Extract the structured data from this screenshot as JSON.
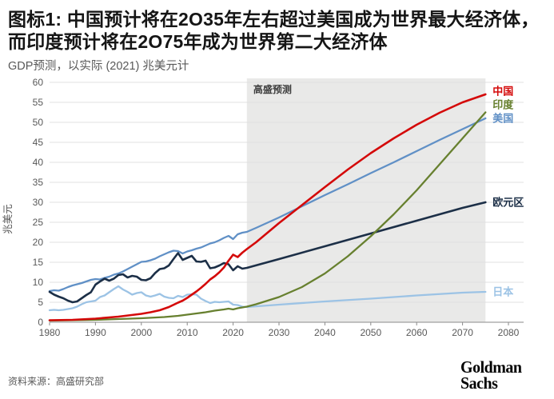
{
  "header": {
    "title": "图标1: 中国预计将在2O35年左右超过美国成为世界最大经济体，而印度预计将在2O75年成为世界第二大经济体",
    "subtitle": "GDP预测，以实际 (2021) 兆美元计"
  },
  "footer": {
    "source": "资料来源：高盛研究部",
    "logo_line1": "Goldman",
    "logo_line2": "Sachs"
  },
  "colors": {
    "grid": "#e0e0e0",
    "axis": "#8a8a8a",
    "tick_text": "#595959",
    "forecast_shade": "#e9e9e8",
    "forecast_text": "#3d3d3d"
  },
  "chart_data": {
    "type": "line",
    "title": "图标1: 中国预计将在2O35年左右超过美国成为世界最大经济体，而印度预计将在2O75年成为世界第二大经济体",
    "subtitle": "GDP预测，以实际 (2021) 兆美元计",
    "xlabel": "",
    "ylabel": "兆美元",
    "xlim": [
      1980,
      2080
    ],
    "ylim": [
      0,
      60
    ],
    "xtick_step": 10,
    "ytick_step": 5,
    "grid": true,
    "legend_position": "right-end-labels",
    "forecast": {
      "label": "高盛预测",
      "start": 2023,
      "end": 2075
    },
    "series": [
      {
        "id": "us",
        "name": "美国",
        "color": "#6090c6",
        "points": [
          [
            1980,
            7.8
          ],
          [
            1981,
            8.0
          ],
          [
            1982,
            7.9
          ],
          [
            1983,
            8.3
          ],
          [
            1984,
            8.8
          ],
          [
            1985,
            9.2
          ],
          [
            1986,
            9.5
          ],
          [
            1987,
            9.8
          ],
          [
            1988,
            10.2
          ],
          [
            1989,
            10.6
          ],
          [
            1990,
            10.8
          ],
          [
            1991,
            10.7
          ],
          [
            1992,
            11.1
          ],
          [
            1993,
            11.4
          ],
          [
            1994,
            11.9
          ],
          [
            1995,
            12.2
          ],
          [
            1996,
            12.7
          ],
          [
            1997,
            13.3
          ],
          [
            1998,
            13.9
          ],
          [
            1999,
            14.5
          ],
          [
            2000,
            15.1
          ],
          [
            2001,
            15.2
          ],
          [
            2002,
            15.5
          ],
          [
            2003,
            15.9
          ],
          [
            2004,
            16.5
          ],
          [
            2005,
            17.0
          ],
          [
            2006,
            17.5
          ],
          [
            2007,
            17.9
          ],
          [
            2008,
            17.8
          ],
          [
            2009,
            17.2
          ],
          [
            2010,
            17.7
          ],
          [
            2011,
            18.0
          ],
          [
            2012,
            18.4
          ],
          [
            2013,
            18.7
          ],
          [
            2014,
            19.2
          ],
          [
            2015,
            19.7
          ],
          [
            2016,
            20.0
          ],
          [
            2017,
            20.5
          ],
          [
            2018,
            21.1
          ],
          [
            2019,
            21.6
          ],
          [
            2020,
            20.8
          ],
          [
            2021,
            22.0
          ],
          [
            2022,
            22.4
          ],
          [
            2023,
            22.6
          ],
          [
            2025,
            23.6
          ],
          [
            2030,
            26.2
          ],
          [
            2035,
            29.0
          ],
          [
            2040,
            31.8
          ],
          [
            2045,
            34.5
          ],
          [
            2050,
            37.3
          ],
          [
            2055,
            40.0
          ],
          [
            2060,
            42.8
          ],
          [
            2065,
            45.6
          ],
          [
            2070,
            48.3
          ],
          [
            2075,
            51.0
          ]
        ]
      },
      {
        "id": "japan",
        "name": "日本",
        "color": "#9cc3e5",
        "points": [
          [
            1980,
            3.0
          ],
          [
            1981,
            3.1
          ],
          [
            1982,
            3.0
          ],
          [
            1983,
            3.1
          ],
          [
            1984,
            3.3
          ],
          [
            1985,
            3.5
          ],
          [
            1986,
            3.9
          ],
          [
            1987,
            4.5
          ],
          [
            1988,
            5.0
          ],
          [
            1989,
            5.2
          ],
          [
            1990,
            5.4
          ],
          [
            1991,
            6.3
          ],
          [
            1992,
            6.7
          ],
          [
            1993,
            7.5
          ],
          [
            1994,
            8.3
          ],
          [
            1995,
            9.0
          ],
          [
            1996,
            8.2
          ],
          [
            1997,
            7.6
          ],
          [
            1998,
            6.9
          ],
          [
            1999,
            7.3
          ],
          [
            2000,
            7.5
          ],
          [
            2001,
            6.7
          ],
          [
            2002,
            6.4
          ],
          [
            2003,
            6.7
          ],
          [
            2004,
            7.1
          ],
          [
            2005,
            6.4
          ],
          [
            2006,
            6.1
          ],
          [
            2007,
            6.0
          ],
          [
            2008,
            6.6
          ],
          [
            2009,
            6.3
          ],
          [
            2010,
            6.9
          ],
          [
            2011,
            7.0
          ],
          [
            2012,
            6.9
          ],
          [
            2013,
            5.9
          ],
          [
            2014,
            5.3
          ],
          [
            2015,
            4.8
          ],
          [
            2016,
            5.1
          ],
          [
            2017,
            5.0
          ],
          [
            2018,
            5.1
          ],
          [
            2019,
            5.2
          ],
          [
            2020,
            4.4
          ],
          [
            2021,
            4.3
          ],
          [
            2022,
            3.9
          ],
          [
            2023,
            3.8
          ],
          [
            2030,
            4.4
          ],
          [
            2040,
            5.2
          ],
          [
            2050,
            5.9
          ],
          [
            2060,
            6.7
          ],
          [
            2070,
            7.4
          ],
          [
            2075,
            7.6
          ]
        ]
      },
      {
        "id": "eurozone",
        "name": "欧元区",
        "color": "#1c2f47",
        "points": [
          [
            1980,
            7.6
          ],
          [
            1981,
            6.9
          ],
          [
            1982,
            6.4
          ],
          [
            1983,
            6.0
          ],
          [
            1984,
            5.4
          ],
          [
            1985,
            5.0
          ],
          [
            1986,
            5.2
          ],
          [
            1987,
            6.0
          ],
          [
            1988,
            6.8
          ],
          [
            1989,
            7.5
          ],
          [
            1990,
            9.4
          ],
          [
            1991,
            10.2
          ],
          [
            1992,
            10.9
          ],
          [
            1993,
            10.4
          ],
          [
            1994,
            10.9
          ],
          [
            1995,
            11.8
          ],
          [
            1996,
            12.0
          ],
          [
            1997,
            11.2
          ],
          [
            1998,
            11.6
          ],
          [
            1999,
            11.4
          ],
          [
            2000,
            10.6
          ],
          [
            2001,
            10.5
          ],
          [
            2002,
            11.0
          ],
          [
            2003,
            12.3
          ],
          [
            2004,
            13.3
          ],
          [
            2005,
            13.5
          ],
          [
            2006,
            14.2
          ],
          [
            2007,
            15.8
          ],
          [
            2008,
            17.3
          ],
          [
            2009,
            15.6
          ],
          [
            2010,
            16.1
          ],
          [
            2011,
            16.6
          ],
          [
            2012,
            15.2
          ],
          [
            2013,
            15.1
          ],
          [
            2014,
            15.4
          ],
          [
            2015,
            13.5
          ],
          [
            2016,
            13.7
          ],
          [
            2017,
            14.2
          ],
          [
            2018,
            14.8
          ],
          [
            2019,
            14.5
          ],
          [
            2020,
            13.0
          ],
          [
            2021,
            14.0
          ],
          [
            2022,
            13.4
          ],
          [
            2023,
            13.6
          ],
          [
            2030,
            15.8
          ],
          [
            2040,
            19.0
          ],
          [
            2050,
            22.2
          ],
          [
            2060,
            25.4
          ],
          [
            2070,
            28.6
          ],
          [
            2075,
            30.0
          ]
        ]
      },
      {
        "id": "india",
        "name": "印度",
        "color": "#67802f",
        "points": [
          [
            1980,
            0.4
          ],
          [
            1985,
            0.5
          ],
          [
            1990,
            0.6
          ],
          [
            1995,
            0.8
          ],
          [
            2000,
            1.0
          ],
          [
            2005,
            1.3
          ],
          [
            2008,
            1.6
          ],
          [
            2010,
            1.9
          ],
          [
            2012,
            2.2
          ],
          [
            2014,
            2.5
          ],
          [
            2016,
            2.9
          ],
          [
            2018,
            3.2
          ],
          [
            2019,
            3.4
          ],
          [
            2020,
            3.2
          ],
          [
            2021,
            3.5
          ],
          [
            2022,
            3.7
          ],
          [
            2023,
            3.9
          ],
          [
            2025,
            4.5
          ],
          [
            2030,
            6.3
          ],
          [
            2035,
            8.8
          ],
          [
            2040,
            12.2
          ],
          [
            2045,
            16.5
          ],
          [
            2050,
            21.5
          ],
          [
            2055,
            27.0
          ],
          [
            2060,
            33.0
          ],
          [
            2065,
            39.5
          ],
          [
            2070,
            46.0
          ],
          [
            2075,
            52.5
          ]
        ]
      },
      {
        "id": "china",
        "name": "中国",
        "color": "#d40909",
        "points": [
          [
            1980,
            0.5
          ],
          [
            1985,
            0.6
          ],
          [
            1990,
            0.9
          ],
          [
            1995,
            1.4
          ],
          [
            2000,
            2.1
          ],
          [
            2002,
            2.5
          ],
          [
            2004,
            3.0
          ],
          [
            2006,
            3.8
          ],
          [
            2008,
            4.9
          ],
          [
            2009,
            5.4
          ],
          [
            2010,
            6.1
          ],
          [
            2011,
            6.9
          ],
          [
            2012,
            7.7
          ],
          [
            2013,
            8.6
          ],
          [
            2014,
            9.6
          ],
          [
            2015,
            10.7
          ],
          [
            2016,
            11.5
          ],
          [
            2017,
            12.5
          ],
          [
            2018,
            13.7
          ],
          [
            2019,
            15.4
          ],
          [
            2020,
            16.9
          ],
          [
            2021,
            16.3
          ],
          [
            2022,
            17.4
          ],
          [
            2023,
            18.3
          ],
          [
            2025,
            20.0
          ],
          [
            2030,
            24.8
          ],
          [
            2035,
            29.3
          ],
          [
            2040,
            33.8
          ],
          [
            2045,
            38.2
          ],
          [
            2050,
            42.3
          ],
          [
            2055,
            46.0
          ],
          [
            2060,
            49.4
          ],
          [
            2065,
            52.4
          ],
          [
            2070,
            55.0
          ],
          [
            2075,
            57.0
          ]
        ]
      }
    ]
  }
}
